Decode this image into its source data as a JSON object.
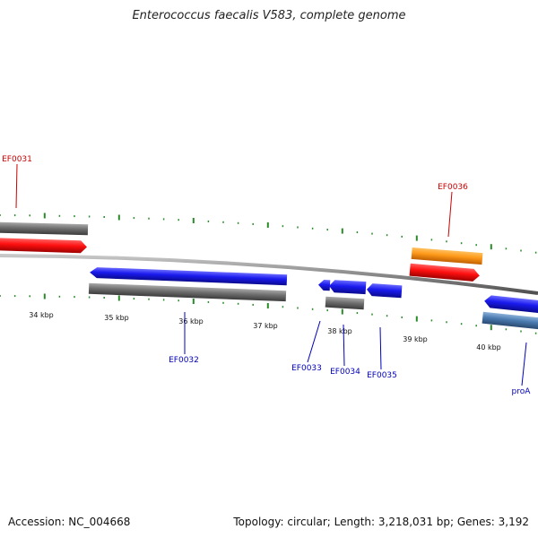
{
  "title": "Enterococcus faecalis V583, complete genome",
  "footer": {
    "accession": "Accession: NC_004668",
    "summary": "Topology: circular; Length: 3,218,031 bp; Genes: 3,192"
  },
  "colors": {
    "backbone": "#8a8a8a",
    "tick": "#2a8a2a",
    "forward_label": "#cc0000",
    "reverse_label": "#0000bb",
    "red": "#ff1010",
    "gray": "#6e6e6e",
    "blue": "#1a1aee",
    "orange": "#ff9a1a",
    "steelblue": "#4a7ab0"
  },
  "scale_labels": [
    "34 kbp",
    "35 kbp",
    "36 kbp",
    "37 kbp",
    "38 kbp",
    "39 kbp",
    "40 kbp"
  ],
  "gene_labels": [
    {
      "id": "EF0031",
      "strand": "forward"
    },
    {
      "id": "EF0036",
      "strand": "forward"
    },
    {
      "id": "EF0032",
      "strand": "reverse"
    },
    {
      "id": "EF0033",
      "strand": "reverse"
    },
    {
      "id": "EF0034",
      "strand": "reverse"
    },
    {
      "id": "EF0035",
      "strand": "reverse"
    },
    {
      "id": "proA",
      "strand": "reverse"
    }
  ]
}
